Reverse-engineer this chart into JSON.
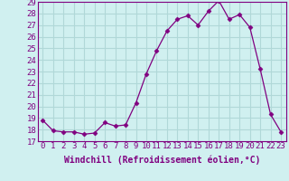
{
  "x": [
    0,
    1,
    2,
    3,
    4,
    5,
    6,
    7,
    8,
    9,
    10,
    11,
    12,
    13,
    14,
    15,
    16,
    17,
    18,
    19,
    20,
    21,
    22,
    23
  ],
  "y": [
    18.8,
    17.9,
    17.8,
    17.8,
    17.6,
    17.7,
    18.6,
    18.3,
    18.4,
    20.3,
    22.8,
    24.8,
    26.5,
    27.5,
    27.8,
    27.0,
    28.2,
    29.1,
    27.5,
    27.9,
    26.8,
    23.2,
    19.3,
    17.8
  ],
  "line_color": "#800080",
  "marker": "D",
  "marker_size": 2.5,
  "bg_color": "#d0f0f0",
  "grid_color": "#b0d8d8",
  "xlabel": "Windchill (Refroidissement éolien,°C)",
  "xlabel_fontsize": 7,
  "tick_fontsize": 6.5,
  "ylim": [
    17,
    29
  ],
  "xlim": [
    -0.5,
    23.5
  ],
  "yticks": [
    17,
    18,
    19,
    20,
    21,
    22,
    23,
    24,
    25,
    26,
    27,
    28,
    29
  ],
  "xticks": [
    0,
    1,
    2,
    3,
    4,
    5,
    6,
    7,
    8,
    9,
    10,
    11,
    12,
    13,
    14,
    15,
    16,
    17,
    18,
    19,
    20,
    21,
    22,
    23
  ]
}
